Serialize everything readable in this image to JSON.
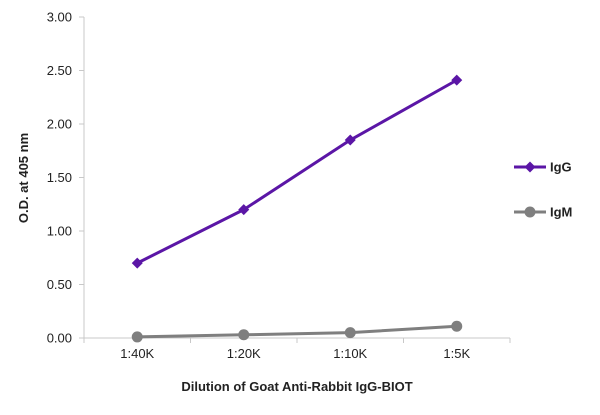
{
  "chart_data": {
    "type": "line",
    "x": [
      "1:40K",
      "1:20K",
      "1:10K",
      "1:5K"
    ],
    "series": [
      {
        "name": "IgG",
        "values": [
          0.7,
          1.2,
          1.85,
          2.41
        ],
        "color": "#5b16a6",
        "marker": "diamond"
      },
      {
        "name": "IgM",
        "values": [
          0.01,
          0.03,
          0.05,
          0.11
        ],
        "color": "#7f7f7f",
        "marker": "circle"
      }
    ],
    "xlabel": "Dilution of Goat Anti-Rabbit IgG-BIOT",
    "ylabel": "O.D. at 405 nm",
    "ylim": [
      0,
      3
    ],
    "yticks": [
      "0.00",
      "0.50",
      "1.00",
      "1.50",
      "2.00",
      "2.50",
      "3.00"
    ],
    "grid": false,
    "legend": "right"
  }
}
